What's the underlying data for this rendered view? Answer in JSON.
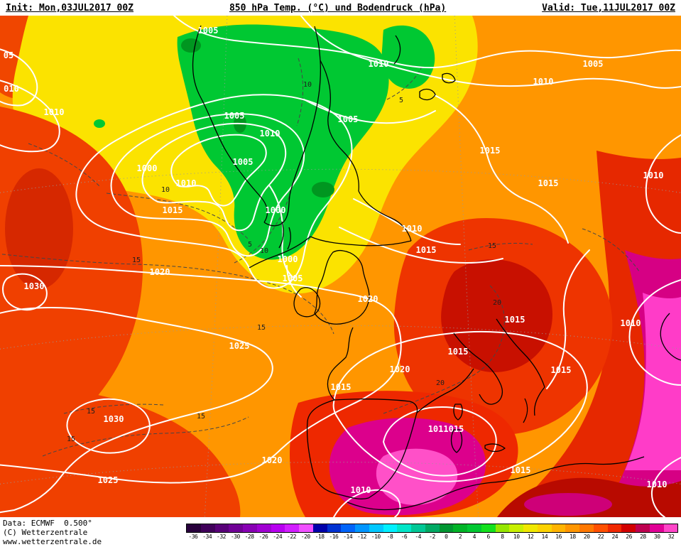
{
  "header": {
    "init": "Init: Mon,03JUL2017 00Z",
    "title": "850 hPa Temp. (°C) und Bodendruck (hPa)",
    "valid": "Valid: Tue,11JUL2017 00Z"
  },
  "footer": {
    "line1": "Data: ECMWF  0.500°",
    "line2": "(C) Wetterzentrale",
    "line3": "www.wetterzentrale.de"
  },
  "colorbar": {
    "stops": [
      {
        "label": "-36",
        "color": "#28003c"
      },
      {
        "label": "-34",
        "color": "#40005a"
      },
      {
        "label": "-32",
        "color": "#580078"
      },
      {
        "label": "-30",
        "color": "#700096"
      },
      {
        "label": "-28",
        "color": "#8800b4"
      },
      {
        "label": "-26",
        "color": "#a000d2"
      },
      {
        "label": "-24",
        "color": "#b800f0"
      },
      {
        "label": "-22",
        "color": "#d21eff"
      },
      {
        "label": "-20",
        "color": "#f050ff"
      },
      {
        "label": "-18",
        "color": "#0000aa"
      },
      {
        "label": "-16",
        "color": "#0032d2"
      },
      {
        "label": "-14",
        "color": "#0064fa"
      },
      {
        "label": "-12",
        "color": "#0096ff"
      },
      {
        "label": "-10",
        "color": "#00c8ff"
      },
      {
        "label": "-8",
        "color": "#00f0ff"
      },
      {
        "label": "-6",
        "color": "#00e6c8"
      },
      {
        "label": "-4",
        "color": "#00c896"
      },
      {
        "label": "-2",
        "color": "#00aa64"
      },
      {
        "label": "0",
        "color": "#009632"
      },
      {
        "label": "2",
        "color": "#00b428"
      },
      {
        "label": "4",
        "color": "#00c832"
      },
      {
        "label": "6",
        "color": "#14e11e"
      },
      {
        "label": "8",
        "color": "#96e600"
      },
      {
        "label": "10",
        "color": "#c8f000"
      },
      {
        "label": "12",
        "color": "#f0e800"
      },
      {
        "label": "14",
        "color": "#fcd200"
      },
      {
        "label": "16",
        "color": "#ffb400"
      },
      {
        "label": "18",
        "color": "#ff9600"
      },
      {
        "label": "20",
        "color": "#ff7800"
      },
      {
        "label": "22",
        "color": "#ff5000"
      },
      {
        "label": "24",
        "color": "#f02800"
      },
      {
        "label": "26",
        "color": "#d20000"
      },
      {
        "label": "28",
        "color": "#be0050"
      },
      {
        "label": "30",
        "color": "#e10096"
      },
      {
        "label": "32",
        "color": "#ff46c8"
      }
    ]
  },
  "map": {
    "pressure_labels": [
      "05",
      "010",
      "1010",
      "1005",
      "1005",
      "1010",
      "1005",
      "1000",
      "1010",
      "1015",
      "1000",
      "1000",
      "1005",
      "1005",
      "1010",
      "1005",
      "1010",
      "1015",
      "1015",
      "1010",
      "1010",
      "1015",
      "1020",
      "1030",
      "1025",
      "1030",
      "1025",
      "1020",
      "1020",
      "1020",
      "1015",
      "1015",
      "1015",
      "1010",
      "1015",
      "1011015",
      "1015",
      "1010",
      "1010"
    ],
    "temperature_labels": [
      "10",
      "5",
      "10",
      "15",
      "15",
      "15",
      "15",
      "15",
      "20",
      "15",
      "20",
      "5",
      "10"
    ]
  },
  "chart_data": {
    "type": "heatmap",
    "title": "850 hPa Temp. (°C) und Bodendruck (hPa)",
    "model": "ECMWF",
    "resolution": "0.500°",
    "init_time": "Mon,03JUL2017 00Z",
    "valid_time": "Tue,11JUL2017 00Z",
    "temperature_scale_c": [
      -36,
      -34,
      -32,
      -30,
      -28,
      -26,
      -24,
      -22,
      -20,
      -18,
      -16,
      -14,
      -12,
      -10,
      -8,
      -6,
      -4,
      -2,
      0,
      2,
      4,
      6,
      8,
      10,
      12,
      14,
      16,
      18,
      20,
      22,
      24,
      26,
      28,
      30,
      32
    ],
    "isobar_levels_hpa_visible": [
      1000,
      1005,
      1010,
      1015,
      1020,
      1025,
      1030
    ],
    "temp_contour_labels_c": [
      5,
      10,
      15,
      20
    ],
    "legend_position": "bottom"
  }
}
